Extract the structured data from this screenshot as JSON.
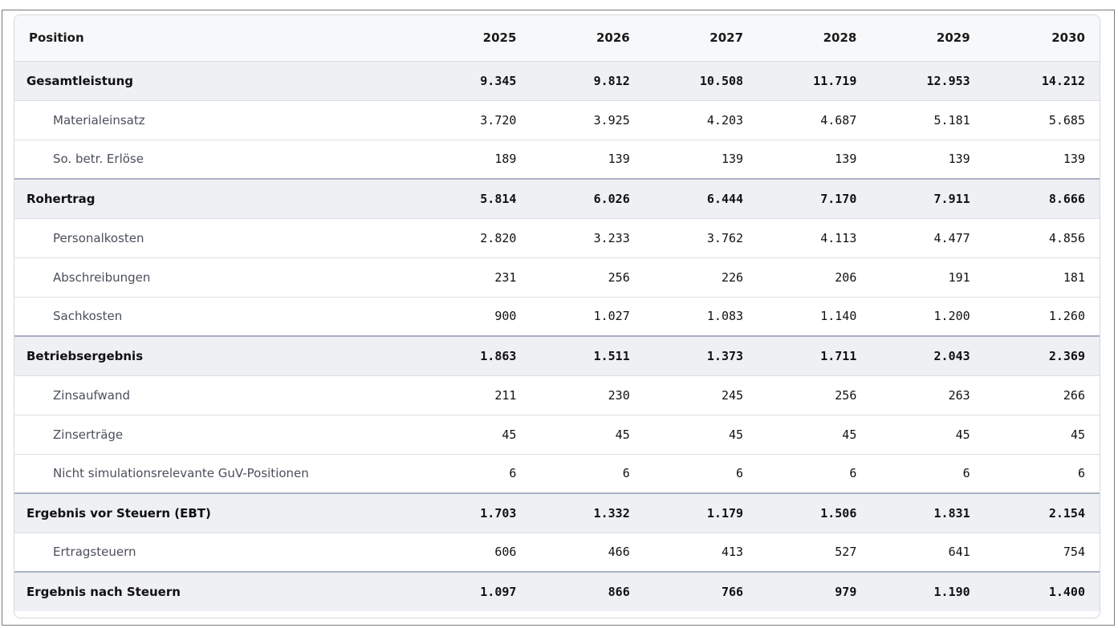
{
  "table": {
    "header": {
      "position": "Position",
      "years": [
        "2025",
        "2026",
        "2027",
        "2028",
        "2029",
        "2030"
      ]
    },
    "rows": [
      {
        "label": "Gesamtleistung",
        "total": true,
        "sep": false,
        "values": [
          "9.345",
          "9.812",
          "10.508",
          "11.719",
          "12.953",
          "14.212"
        ]
      },
      {
        "label": "Materialeinsatz",
        "total": false,
        "sep": false,
        "values": [
          "3.720",
          "3.925",
          "4.203",
          "4.687",
          "5.181",
          "5.685"
        ]
      },
      {
        "label": "So. betr. Erlöse",
        "total": false,
        "sep": false,
        "values": [
          "189",
          "139",
          "139",
          "139",
          "139",
          "139"
        ]
      },
      {
        "label": "Rohertrag",
        "total": true,
        "sep": true,
        "values": [
          "5.814",
          "6.026",
          "6.444",
          "7.170",
          "7.911",
          "8.666"
        ]
      },
      {
        "label": "Personalkosten",
        "total": false,
        "sep": false,
        "values": [
          "2.820",
          "3.233",
          "3.762",
          "4.113",
          "4.477",
          "4.856"
        ]
      },
      {
        "label": "Abschreibungen",
        "total": false,
        "sep": false,
        "values": [
          "231",
          "256",
          "226",
          "206",
          "191",
          "181"
        ]
      },
      {
        "label": "Sachkosten",
        "total": false,
        "sep": false,
        "values": [
          "900",
          "1.027",
          "1.083",
          "1.140",
          "1.200",
          "1.260"
        ]
      },
      {
        "label": "Betriebsergebnis",
        "total": true,
        "sep": true,
        "values": [
          "1.863",
          "1.511",
          "1.373",
          "1.711",
          "2.043",
          "2.369"
        ]
      },
      {
        "label": "Zinsaufwand",
        "total": false,
        "sep": false,
        "values": [
          "211",
          "230",
          "245",
          "256",
          "263",
          "266"
        ]
      },
      {
        "label": "Zinserträge",
        "total": false,
        "sep": false,
        "values": [
          "45",
          "45",
          "45",
          "45",
          "45",
          "45"
        ]
      },
      {
        "label": "Nicht simulationsrelevante GuV-Positionen",
        "total": false,
        "sep": false,
        "values": [
          "6",
          "6",
          "6",
          "6",
          "6",
          "6"
        ]
      },
      {
        "label": "Ergebnis vor Steuern (EBT)",
        "total": true,
        "sep": true,
        "values": [
          "1.703",
          "1.332",
          "1.179",
          "1.506",
          "1.831",
          "2.154"
        ]
      },
      {
        "label": "Ertragsteuern",
        "total": false,
        "sep": false,
        "values": [
          "606",
          "466",
          "413",
          "527",
          "641",
          "754"
        ]
      },
      {
        "label": "Ergebnis nach Steuern",
        "total": true,
        "sep": true,
        "values": [
          "1.097",
          "866",
          "766",
          "979",
          "1.190",
          "1.400"
        ]
      }
    ]
  }
}
